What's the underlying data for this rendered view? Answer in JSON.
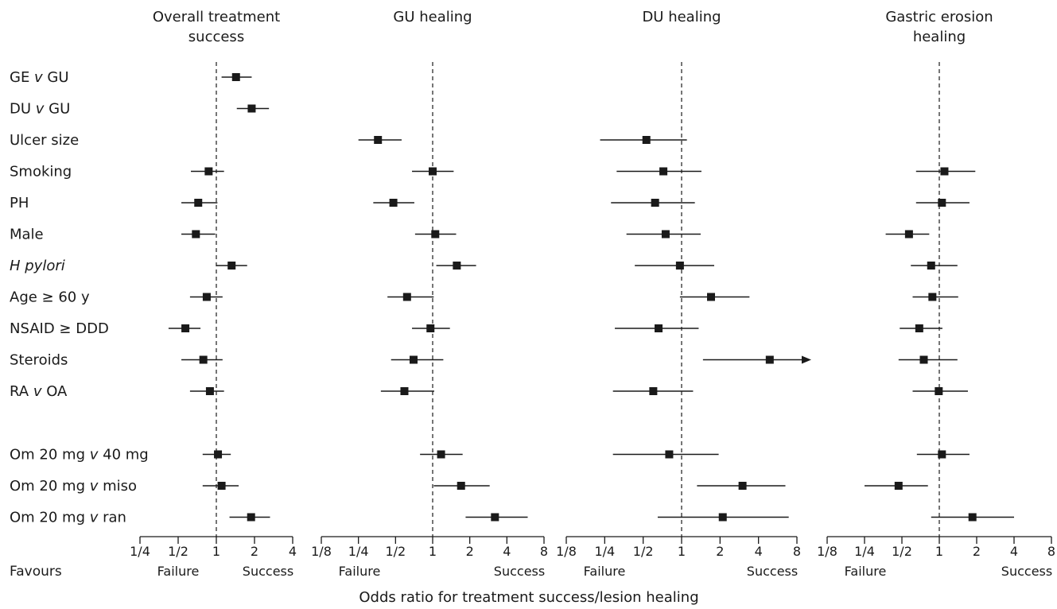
{
  "chart_data": {
    "type": "forest",
    "xlabel": "Odds ratio for treatment success/lesion healing",
    "x_scale": "log2",
    "favours": {
      "label": "Favours",
      "left": "Failure",
      "right": "Success"
    },
    "rows": [
      {
        "id": "ge_gu",
        "parts": [
          {
            "t": "GE ",
            "i": false
          },
          {
            "t": "v",
            "i": true
          },
          {
            "t": " GU",
            "i": false
          }
        ]
      },
      {
        "id": "du_gu",
        "parts": [
          {
            "t": "DU ",
            "i": false
          },
          {
            "t": "v",
            "i": true
          },
          {
            "t": " GU",
            "i": false
          }
        ]
      },
      {
        "id": "ulcer_size",
        "parts": [
          {
            "t": "Ulcer size",
            "i": false
          }
        ]
      },
      {
        "id": "smoking",
        "parts": [
          {
            "t": "Smoking",
            "i": false
          }
        ]
      },
      {
        "id": "ph",
        "parts": [
          {
            "t": "PH",
            "i": false
          }
        ]
      },
      {
        "id": "male",
        "parts": [
          {
            "t": "Male",
            "i": false
          }
        ]
      },
      {
        "id": "h_pylori",
        "parts": [
          {
            "t": "H pylori",
            "i": true
          }
        ]
      },
      {
        "id": "age60",
        "parts": [
          {
            "t": "Age ≥ 60 y",
            "i": false
          }
        ]
      },
      {
        "id": "nsaid",
        "parts": [
          {
            "t": "NSAID ≥ DDD",
            "i": false
          }
        ]
      },
      {
        "id": "steroids",
        "parts": [
          {
            "t": "Steroids",
            "i": false
          }
        ]
      },
      {
        "id": "ra_oa",
        "parts": [
          {
            "t": "RA ",
            "i": false
          },
          {
            "t": "v",
            "i": true
          },
          {
            "t": " OA",
            "i": false
          }
        ]
      },
      {
        "id": "om20_40",
        "gap_before": true,
        "parts": [
          {
            "t": "Om 20 mg ",
            "i": false
          },
          {
            "t": "v",
            "i": true
          },
          {
            "t": " 40 mg",
            "i": false
          }
        ]
      },
      {
        "id": "om20_miso",
        "parts": [
          {
            "t": "Om 20 mg ",
            "i": false
          },
          {
            "t": "v",
            "i": true
          },
          {
            "t": " miso",
            "i": false
          }
        ]
      },
      {
        "id": "om20_ran",
        "parts": [
          {
            "t": "Om 20 mg ",
            "i": false
          },
          {
            "t": "v",
            "i": true
          },
          {
            "t": " ran",
            "i": false
          }
        ]
      }
    ],
    "panels": [
      {
        "title_lines": [
          "Overall treatment",
          "success"
        ],
        "xlim": [
          0.25,
          4
        ],
        "ticks": [
          {
            "v": 0.25,
            "label": "1/4"
          },
          {
            "v": 0.5,
            "label": "1/2"
          },
          {
            "v": 1,
            "label": "1"
          },
          {
            "v": 2,
            "label": "2"
          },
          {
            "v": 4,
            "label": "4"
          }
        ],
        "estimates": [
          {
            "row": "ge_gu",
            "or": 1.43,
            "lo": 1.1,
            "hi": 1.9
          },
          {
            "row": "du_gu",
            "or": 1.9,
            "lo": 1.45,
            "hi": 2.6
          },
          {
            "row": "smoking",
            "or": 0.87,
            "lo": 0.63,
            "hi": 1.15
          },
          {
            "row": "ph",
            "or": 0.72,
            "lo": 0.53,
            "hi": 1.02
          },
          {
            "row": "male",
            "or": 0.69,
            "lo": 0.53,
            "hi": 0.98
          },
          {
            "row": "h_pylori",
            "or": 1.32,
            "lo": 1.0,
            "hi": 1.75
          },
          {
            "row": "age60",
            "or": 0.84,
            "lo": 0.62,
            "hi": 1.12
          },
          {
            "row": "nsaid",
            "or": 0.57,
            "lo": 0.42,
            "hi": 0.75
          },
          {
            "row": "steroids",
            "or": 0.79,
            "lo": 0.53,
            "hi": 1.12
          },
          {
            "row": "ra_oa",
            "or": 0.89,
            "lo": 0.62,
            "hi": 1.15
          },
          {
            "row": "om20_40",
            "or": 1.03,
            "lo": 0.78,
            "hi": 1.3
          },
          {
            "row": "om20_miso",
            "or": 1.1,
            "lo": 0.78,
            "hi": 1.5
          },
          {
            "row": "om20_ran",
            "or": 1.88,
            "lo": 1.27,
            "hi": 2.65
          }
        ]
      },
      {
        "title_lines": [
          "GU healing"
        ],
        "xlim": [
          0.125,
          8
        ],
        "ticks": [
          {
            "v": 0.125,
            "label": "1/8"
          },
          {
            "v": 0.25,
            "label": "1/4"
          },
          {
            "v": 0.5,
            "label": "1/2"
          },
          {
            "v": 1,
            "label": "1"
          },
          {
            "v": 2,
            "label": "2"
          },
          {
            "v": 4,
            "label": "4"
          },
          {
            "v": 8,
            "label": "8"
          }
        ],
        "estimates": [
          {
            "row": "ulcer_size",
            "or": 0.36,
            "lo": 0.25,
            "hi": 0.56
          },
          {
            "row": "smoking",
            "or": 1.0,
            "lo": 0.68,
            "hi": 1.48
          },
          {
            "row": "ph",
            "or": 0.48,
            "lo": 0.33,
            "hi": 0.71
          },
          {
            "row": "male",
            "or": 1.05,
            "lo": 0.72,
            "hi": 1.55
          },
          {
            "row": "h_pylori",
            "or": 1.57,
            "lo": 1.07,
            "hi": 2.25
          },
          {
            "row": "age60",
            "or": 0.62,
            "lo": 0.43,
            "hi": 1.02
          },
          {
            "row": "nsaid",
            "or": 0.96,
            "lo": 0.68,
            "hi": 1.38
          },
          {
            "row": "steroids",
            "or": 0.7,
            "lo": 0.46,
            "hi": 1.22
          },
          {
            "row": "ra_oa",
            "or": 0.59,
            "lo": 0.38,
            "hi": 1.03
          },
          {
            "row": "om20_40",
            "or": 1.17,
            "lo": 0.79,
            "hi": 1.75
          },
          {
            "row": "om20_miso",
            "or": 1.7,
            "lo": 1.02,
            "hi": 2.9
          },
          {
            "row": "om20_ran",
            "or": 3.2,
            "lo": 1.85,
            "hi": 5.9
          }
        ]
      },
      {
        "title_lines": [
          "DU healing"
        ],
        "xlim": [
          0.125,
          8
        ],
        "ticks": [
          {
            "v": 0.125,
            "label": "1/8"
          },
          {
            "v": 0.25,
            "label": "1/4"
          },
          {
            "v": 0.5,
            "label": "1/2"
          },
          {
            "v": 1,
            "label": "1"
          },
          {
            "v": 2,
            "label": "2"
          },
          {
            "v": 4,
            "label": "4"
          },
          {
            "v": 8,
            "label": "8"
          }
        ],
        "estimates": [
          {
            "row": "ulcer_size",
            "or": 0.53,
            "lo": 0.23,
            "hi": 1.1
          },
          {
            "row": "smoking",
            "or": 0.72,
            "lo": 0.31,
            "hi": 1.43
          },
          {
            "row": "ph",
            "or": 0.62,
            "lo": 0.28,
            "hi": 1.27
          },
          {
            "row": "male",
            "or": 0.75,
            "lo": 0.37,
            "hi": 1.41
          },
          {
            "row": "h_pylori",
            "or": 0.97,
            "lo": 0.43,
            "hi": 1.8
          },
          {
            "row": "age60",
            "or": 1.7,
            "lo": 0.97,
            "hi": 3.4
          },
          {
            "row": "nsaid",
            "or": 0.66,
            "lo": 0.3,
            "hi": 1.36
          },
          {
            "row": "steroids",
            "or": 4.9,
            "lo": 1.47,
            "hi": 11.5,
            "arrow": true
          },
          {
            "row": "ra_oa",
            "or": 0.6,
            "lo": 0.29,
            "hi": 1.23
          },
          {
            "row": "om20_40",
            "or": 0.8,
            "lo": 0.29,
            "hi": 1.95
          },
          {
            "row": "om20_miso",
            "or": 3.0,
            "lo": 1.32,
            "hi": 6.5
          },
          {
            "row": "om20_ran",
            "or": 2.1,
            "lo": 0.65,
            "hi": 6.9
          }
        ]
      },
      {
        "title_lines": [
          "Gastric erosion",
          "healing"
        ],
        "xlim": [
          0.125,
          8
        ],
        "ticks": [
          {
            "v": 0.125,
            "label": "1/8"
          },
          {
            "v": 0.25,
            "label": "1/4"
          },
          {
            "v": 0.5,
            "label": "1/2"
          },
          {
            "v": 1,
            "label": "1"
          },
          {
            "v": 2,
            "label": "2"
          },
          {
            "v": 4,
            "label": "4"
          },
          {
            "v": 8,
            "label": "8"
          }
        ],
        "estimates": [
          {
            "row": "smoking",
            "or": 1.1,
            "lo": 0.65,
            "hi": 1.95
          },
          {
            "row": "ph",
            "or": 1.05,
            "lo": 0.65,
            "hi": 1.75
          },
          {
            "row": "male",
            "or": 0.57,
            "lo": 0.37,
            "hi": 0.83
          },
          {
            "row": "h_pylori",
            "or": 0.86,
            "lo": 0.59,
            "hi": 1.4
          },
          {
            "row": "age60",
            "or": 0.88,
            "lo": 0.61,
            "hi": 1.42
          },
          {
            "row": "nsaid",
            "or": 0.69,
            "lo": 0.48,
            "hi": 1.06
          },
          {
            "row": "steroids",
            "or": 0.75,
            "lo": 0.47,
            "hi": 1.4
          },
          {
            "row": "ra_oa",
            "or": 0.99,
            "lo": 0.61,
            "hi": 1.7
          },
          {
            "row": "om20_40",
            "or": 1.05,
            "lo": 0.66,
            "hi": 1.75
          },
          {
            "row": "om20_miso",
            "or": 0.47,
            "lo": 0.25,
            "hi": 0.81
          },
          {
            "row": "om20_ran",
            "or": 1.85,
            "lo": 0.86,
            "hi": 4.0
          }
        ]
      }
    ]
  }
}
